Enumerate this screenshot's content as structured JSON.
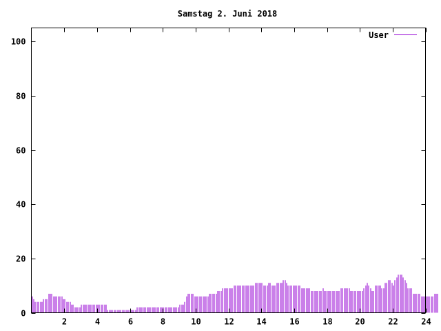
{
  "chart_data": {
    "type": "bar",
    "title": "Samstag 2. Juni 2018",
    "xlabel": "",
    "ylabel": "",
    "xlim": [
      0,
      24
    ],
    "ylim": [
      0,
      105
    ],
    "x_ticks": [
      2,
      4,
      6,
      8,
      10,
      12,
      14,
      16,
      18,
      20,
      22,
      24
    ],
    "y_ticks": [
      0,
      20,
      40,
      60,
      80,
      100
    ],
    "grid": false,
    "legend_position": "top-right",
    "series": [
      {
        "name": "User",
        "color": "#9400d3",
        "bar_step_hours": 0.1,
        "values": [
          6,
          5,
          4,
          4,
          4,
          4,
          4,
          5,
          5,
          5,
          7,
          7,
          7,
          6,
          6,
          6,
          6,
          6,
          6,
          5,
          5,
          4,
          4,
          4,
          3,
          3,
          2,
          2,
          2,
          2,
          3,
          3,
          3,
          3,
          3,
          3,
          3,
          3,
          3,
          3,
          3,
          3,
          3,
          3,
          3,
          3,
          1,
          1,
          1,
          1,
          1,
          1,
          1,
          1,
          1,
          1,
          1,
          1,
          1,
          1,
          1,
          1,
          1,
          1,
          2,
          2,
          2,
          2,
          2,
          2,
          2,
          2,
          2,
          2,
          2,
          2,
          2,
          2,
          2,
          2,
          2,
          2,
          2,
          2,
          2,
          2,
          2,
          2,
          2,
          2,
          3,
          3,
          3,
          4,
          6,
          7,
          7,
          7,
          7,
          6,
          6,
          6,
          6,
          6,
          6,
          6,
          6,
          6,
          7,
          7,
          7,
          7,
          7,
          8,
          8,
          8,
          9,
          9,
          9,
          9,
          9,
          9,
          9,
          10,
          10,
          10,
          10,
          10,
          10,
          10,
          10,
          10,
          10,
          10,
          10,
          10,
          11,
          11,
          11,
          11,
          11,
          10,
          10,
          10,
          11,
          11,
          10,
          10,
          10,
          11,
          11,
          11,
          11,
          12,
          12,
          11,
          10,
          10,
          10,
          10,
          10,
          10,
          10,
          10,
          9,
          9,
          9,
          9,
          9,
          9,
          8,
          8,
          8,
          8,
          8,
          8,
          8,
          9,
          8,
          8,
          8,
          8,
          8,
          8,
          8,
          8,
          8,
          8,
          9,
          9,
          9,
          9,
          9,
          9,
          8,
          8,
          8,
          8,
          8,
          8,
          8,
          8,
          9,
          10,
          11,
          10,
          9,
          8,
          8,
          10,
          10,
          10,
          10,
          9,
          9,
          11,
          11,
          12,
          12,
          11,
          10,
          12,
          13,
          14,
          14,
          14,
          13,
          12,
          11,
          9,
          9,
          9,
          7,
          7,
          7,
          7,
          7,
          6,
          6,
          6,
          6,
          6,
          6,
          6,
          6,
          7,
          7,
          7
        ]
      }
    ]
  }
}
